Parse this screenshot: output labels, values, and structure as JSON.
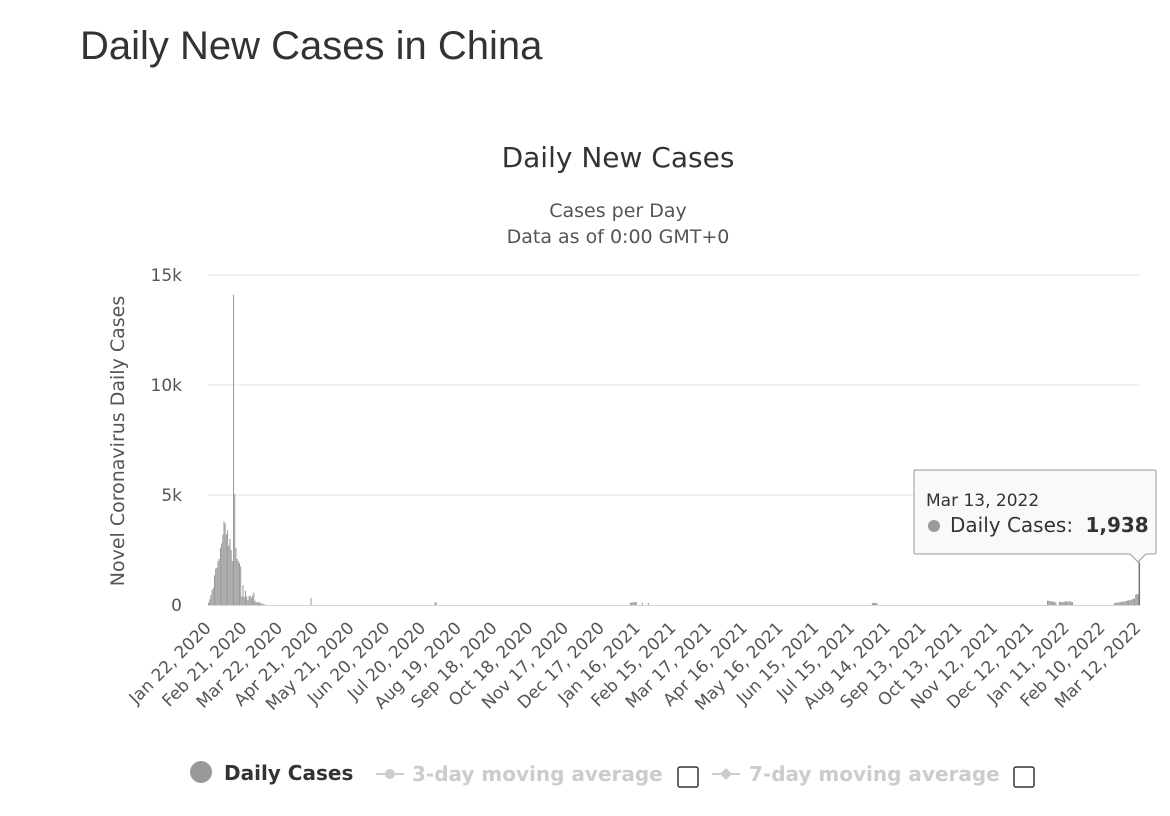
{
  "page": {
    "title": "Daily New Cases in China"
  },
  "chart_data": {
    "type": "bar",
    "title": "Daily New Cases",
    "subtitle_line1": "Cases per Day",
    "subtitle_line2": "Data as of 0:00 GMT+0",
    "ylabel": "Novel Coronavirus Daily Cases",
    "xlabel": "",
    "ylim": [
      0,
      15000
    ],
    "yticks": [
      {
        "value": 0,
        "label": "0"
      },
      {
        "value": 5000,
        "label": "5k"
      },
      {
        "value": 10000,
        "label": "10k"
      },
      {
        "value": 15000,
        "label": "15k"
      }
    ],
    "x_start": "Jan 22, 2020",
    "x_end": "Mar 13, 2022",
    "xticks": [
      "Jan 22, 2020",
      "Feb 21, 2020",
      "Mar 22, 2020",
      "Apr 21, 2020",
      "May 21, 2020",
      "Jun 20, 2020",
      "Jul 20, 2020",
      "Aug 19, 2020",
      "Sep 18, 2020",
      "Oct 18, 2020",
      "Nov 17, 2020",
      "Dec 17, 2020",
      "Jan 16, 2021",
      "Feb 15, 2021",
      "Mar 17, 2021",
      "Apr 16, 2021",
      "May 16, 2021",
      "Jun 15, 2021",
      "Jul 15, 2021",
      "Aug 14, 2021",
      "Sep 13, 2021",
      "Oct 13, 2021",
      "Nov 12, 2021",
      "Dec 12, 2021",
      "Jan 11, 2022",
      "Feb 10, 2022",
      "Mar 12, 2022"
    ],
    "grid": true,
    "series": [
      {
        "name": "Daily Cases",
        "color": "#999999",
        "points": [
          [
            "Jan 22, 2020",
            100
          ],
          [
            "Jan 23, 2020",
            250
          ],
          [
            "Jan 24, 2020",
            450
          ],
          [
            "Jan 25, 2020",
            680
          ],
          [
            "Jan 26, 2020",
            770
          ],
          [
            "Jan 27, 2020",
            1350
          ],
          [
            "Jan 28, 2020",
            1650
          ],
          [
            "Jan 29, 2020",
            1700
          ],
          [
            "Jan 30, 2020",
            2000
          ],
          [
            "Jan 31, 2020",
            2100
          ],
          [
            "Feb 1, 2020",
            2600
          ],
          [
            "Feb 2, 2020",
            2800
          ],
          [
            "Feb 3, 2020",
            3200
          ],
          [
            "Feb 4, 2020",
            3800
          ],
          [
            "Feb 5, 2020",
            3700
          ],
          [
            "Feb 6, 2020",
            3200
          ],
          [
            "Feb 7, 2020",
            3400
          ],
          [
            "Feb 8, 2020",
            2700
          ],
          [
            "Feb 9, 2020",
            3000
          ],
          [
            "Feb 10, 2020",
            2500
          ],
          [
            "Feb 11, 2020",
            2000
          ],
          [
            "Feb 12, 2020",
            14100
          ],
          [
            "Feb 13, 2020",
            5050
          ],
          [
            "Feb 14, 2020",
            2600
          ],
          [
            "Feb 15, 2020",
            2100
          ],
          [
            "Feb 16, 2020",
            2000
          ],
          [
            "Feb 17, 2020",
            1900
          ],
          [
            "Feb 18, 2020",
            1750
          ],
          [
            "Feb 19, 2020",
            400
          ],
          [
            "Feb 20, 2020",
            900
          ],
          [
            "Feb 21, 2020",
            350
          ],
          [
            "Feb 22, 2020",
            650
          ],
          [
            "Feb 23, 2020",
            400
          ],
          [
            "Feb 24, 2020",
            220
          ],
          [
            "Feb 25, 2020",
            400
          ],
          [
            "Feb 26, 2020",
            430
          ],
          [
            "Feb 27, 2020",
            330
          ],
          [
            "Feb 28, 2020",
            430
          ],
          [
            "Feb 29, 2020",
            570
          ],
          [
            "Mar 1, 2020",
            200
          ],
          [
            "Mar 2, 2020",
            125
          ],
          [
            "Mar 3, 2020",
            120
          ],
          [
            "Mar 4, 2020",
            140
          ],
          [
            "Mar 5, 2020",
            100
          ],
          [
            "Mar 6, 2020",
            100
          ],
          [
            "Mar 7, 2020",
            45
          ],
          [
            "Mar 8, 2020",
            40
          ],
          [
            "Mar 9, 2020",
            20
          ],
          [
            "Mar 10, 2020",
            20
          ],
          [
            "Apr 17, 2020",
            320
          ],
          [
            "Jul 30, 2020",
            120
          ],
          [
            "Jul 31, 2020",
            110
          ],
          [
            "Jan 10, 2021",
            100
          ],
          [
            "Jan 11, 2021",
            110
          ],
          [
            "Jan 12, 2021",
            120
          ],
          [
            "Jan 13, 2021",
            130
          ],
          [
            "Jan 14, 2021",
            140
          ],
          [
            "Jan 15, 2021",
            130
          ],
          [
            "Jan 20, 2021",
            110
          ],
          [
            "Jan 25, 2021",
            100
          ],
          [
            "Aug 1, 2021",
            90
          ],
          [
            "Aug 2, 2021",
            100
          ],
          [
            "Aug 3, 2021",
            95
          ],
          [
            "Aug 4, 2021",
            90
          ],
          [
            "Aug 5, 2021",
            80
          ],
          [
            "Dec 26, 2021",
            200
          ],
          [
            "Dec 27, 2021",
            190
          ],
          [
            "Dec 28, 2021",
            180
          ],
          [
            "Dec 29, 2021",
            170
          ],
          [
            "Dec 30, 2021",
            160
          ],
          [
            "Dec 31, 2021",
            150
          ],
          [
            "Jan 1, 2022",
            130
          ],
          [
            "Jan 2, 2022",
            120
          ],
          [
            "Jan 5, 2022",
            150
          ],
          [
            "Jan 6, 2022",
            140
          ],
          [
            "Jan 7, 2022",
            130
          ],
          [
            "Jan 8, 2022",
            130
          ],
          [
            "Jan 9, 2022",
            150
          ],
          [
            "Jan 10, 2022",
            170
          ],
          [
            "Jan 11, 2022",
            160
          ],
          [
            "Jan 12, 2022",
            150
          ],
          [
            "Jan 13, 2022",
            180
          ],
          [
            "Jan 14, 2022",
            160
          ],
          [
            "Jan 15, 2022",
            140
          ],
          [
            "Jan 16, 2022",
            130
          ],
          [
            "Feb 20, 2022",
            80
          ],
          [
            "Feb 21, 2022",
            90
          ],
          [
            "Feb 22, 2022",
            100
          ],
          [
            "Feb 23, 2022",
            110
          ],
          [
            "Feb 24, 2022",
            120
          ],
          [
            "Feb 25, 2022",
            130
          ],
          [
            "Feb 26, 2022",
            140
          ],
          [
            "Feb 27, 2022",
            150
          ],
          [
            "Feb 28, 2022",
            160
          ],
          [
            "Mar 1, 2022",
            170
          ],
          [
            "Mar 2, 2022",
            180
          ],
          [
            "Mar 3, 2022",
            200
          ],
          [
            "Mar 4, 2022",
            210
          ],
          [
            "Mar 5, 2022",
            220
          ],
          [
            "Mar 6, 2022",
            240
          ],
          [
            "Mar 7, 2022",
            260
          ],
          [
            "Mar 8, 2022",
            280
          ],
          [
            "Mar 9, 2022",
            300
          ],
          [
            "Mar 10, 2022",
            480
          ],
          [
            "Mar 11, 2022",
            500
          ],
          [
            "Mar 12, 2022",
            480
          ],
          [
            "Mar 13, 2022",
            1938
          ]
        ]
      }
    ],
    "tooltip": {
      "date": "Mar 13, 2022",
      "label": "Daily Cases:",
      "value": "1,938"
    },
    "legend": {
      "placement": "bottom",
      "items": [
        {
          "label": "Daily Cases",
          "color": "#999999",
          "active": true
        },
        {
          "label": "3-day moving average",
          "color": "#cccccc",
          "active": false,
          "checked": false
        },
        {
          "label": "7-day moving average",
          "color": "#cccccc",
          "active": false,
          "checked": false
        }
      ]
    }
  }
}
